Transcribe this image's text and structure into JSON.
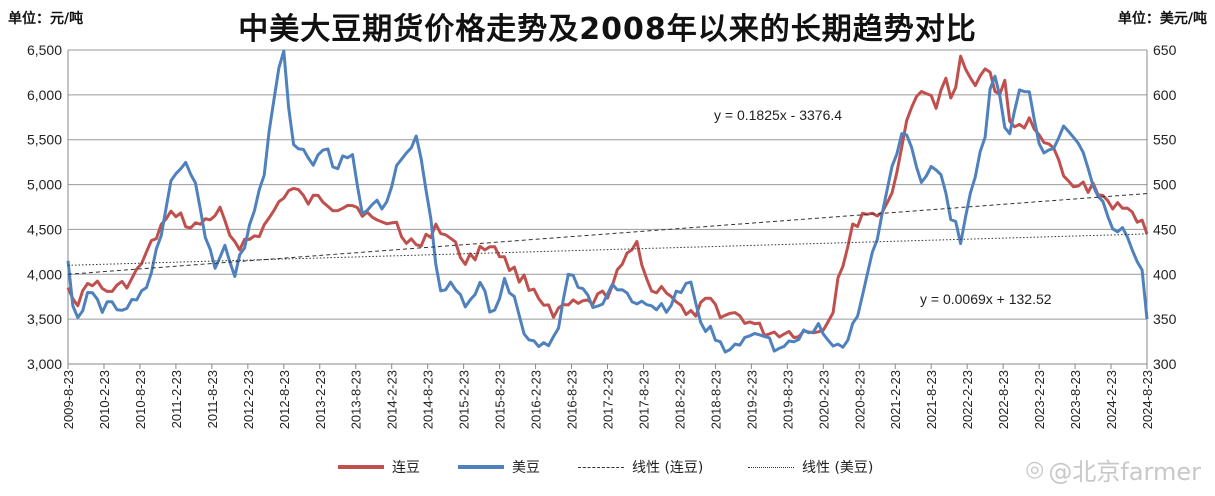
{
  "title": "中美大豆期货价格走势及2008年以来的长期趋势对比",
  "unit_left": "单位：元/吨",
  "unit_right": "单位：美元/吨",
  "watermark": "@北京farmer",
  "colors": {
    "series1": "#c0504d",
    "series2": "#4f81bd",
    "grid": "#9a9a9a",
    "trend": "#333333"
  },
  "chart_data": {
    "type": "line",
    "x_ticks": [
      "2009-8-23",
      "2010-2-23",
      "2010-8-23",
      "2011-2-23",
      "2011-8-23",
      "2012-2-23",
      "2012-8-23",
      "2013-2-23",
      "2013-8-23",
      "2014-2-23",
      "2014-8-23",
      "2015-2-23",
      "2015-8-23",
      "2016-2-23",
      "2016-8-23",
      "2017-2-23",
      "2017-8-23",
      "2018-2-23",
      "2018-8-23",
      "2019-2-23",
      "2019-8-23",
      "2020-2-23",
      "2020-8-23",
      "2021-2-23",
      "2021-8-23",
      "2022-2-23",
      "2022-8-23",
      "2023-2-23",
      "2023-8-23",
      "2024-2-23",
      "2024-8-23"
    ],
    "y_left": {
      "min": 3000,
      "max": 6500,
      "step": 500,
      "ticks": [
        "3,000",
        "3,500",
        "4,000",
        "4,500",
        "5,000",
        "5,500",
        "6,000",
        "6,500"
      ]
    },
    "y_right": {
      "min": 300,
      "max": 650,
      "step": 50,
      "ticks": [
        "300",
        "350",
        "400",
        "450",
        "500",
        "550",
        "600",
        "650"
      ]
    },
    "series": [
      {
        "name": "连豆",
        "axis": "left",
        "x": [
          2009.64,
          2009.8,
          2009.95,
          2010.15,
          2010.35,
          2010.55,
          2010.75,
          2010.95,
          2011.15,
          2011.35,
          2011.55,
          2011.75,
          2011.95,
          2012.15,
          2012.35,
          2012.5,
          2012.65,
          2012.8,
          2012.95,
          2013.15,
          2013.35,
          2013.55,
          2013.75,
          2013.95,
          2014.15,
          2014.35,
          2014.55,
          2014.75,
          2014.95,
          2015.15,
          2015.35,
          2015.55,
          2015.75,
          2015.95,
          2016.1,
          2016.25,
          2016.4,
          2016.55,
          2016.75,
          2016.95,
          2017.15,
          2017.35,
          2017.55,
          2017.75,
          2017.95,
          2018.1,
          2018.25,
          2018.4,
          2018.55,
          2018.75,
          2018.95,
          2019.15,
          2019.35,
          2019.55,
          2019.75,
          2019.95,
          2020.1,
          2020.25,
          2020.35,
          2020.45,
          2020.55,
          2020.7,
          2020.85,
          2021.0,
          2021.1,
          2021.2,
          2021.35,
          2021.5,
          2021.6,
          2021.7,
          2021.85,
          2021.95,
          2022.05,
          2022.2,
          2022.35,
          2022.45,
          2022.55,
          2022.65,
          2022.75,
          2022.9,
          2023.0,
          2023.1,
          2023.25,
          2023.4,
          2023.5,
          2023.6,
          2023.75,
          2023.9,
          2024.05,
          2024.2,
          2024.35,
          2024.5,
          2024.64
        ],
        "values": [
          3850,
          3680,
          3950,
          3800,
          3850,
          3950,
          4250,
          4550,
          4700,
          4500,
          4600,
          4700,
          4300,
          4400,
          4500,
          4700,
          4900,
          4950,
          4800,
          4850,
          4750,
          4800,
          4700,
          4550,
          4600,
          4400,
          4300,
          4550,
          4400,
          4150,
          4250,
          4350,
          4100,
          3950,
          3850,
          3700,
          3500,
          3650,
          3650,
          3700,
          3800,
          4100,
          4350,
          3800,
          3850,
          3700,
          3500,
          3600,
          3700,
          3550,
          3550,
          3450,
          3350,
          3350,
          3350,
          3350,
          3400,
          3500,
          4000,
          4200,
          4500,
          4700,
          4650,
          4750,
          4900,
          5350,
          5800,
          6100,
          6000,
          5850,
          6150,
          5850,
          6500,
          6150,
          6200,
          6300,
          5900,
          6200,
          5650,
          5650,
          5700,
          5550,
          5500,
          5250,
          5050,
          4950,
          5000,
          4950,
          4850,
          4750,
          4700,
          4650,
          4450
        ]
      },
      {
        "name": "美豆",
        "axis": "right",
        "x": [
          2009.64,
          2009.7,
          2009.8,
          2009.95,
          2010.1,
          2010.25,
          2010.4,
          2010.55,
          2010.7,
          2010.85,
          2010.95,
          2011.1,
          2011.25,
          2011.4,
          2011.55,
          2011.7,
          2011.85,
          2011.95,
          2012.1,
          2012.25,
          2012.35,
          2012.45,
          2012.55,
          2012.65,
          2012.75,
          2012.9,
          2013.05,
          2013.2,
          2013.35,
          2013.5,
          2013.6,
          2013.75,
          2013.9,
          2014.05,
          2014.2,
          2014.35,
          2014.5,
          2014.6,
          2014.7,
          2014.8,
          2015.0,
          2015.2,
          2015.4,
          2015.55,
          2015.7,
          2015.85,
          2016.0,
          2016.15,
          2016.3,
          2016.45,
          2016.6,
          2016.75,
          2016.9,
          2017.05,
          2017.2,
          2017.35,
          2017.55,
          2017.7,
          2017.85,
          2018.0,
          2018.15,
          2018.3,
          2018.45,
          2018.6,
          2018.75,
          2018.9,
          2019.05,
          2019.2,
          2019.35,
          2019.5,
          2019.65,
          2019.8,
          2019.95,
          2020.1,
          2020.25,
          2020.4,
          2020.55,
          2020.7,
          2020.85,
          2021.0,
          2021.1,
          2021.25,
          2021.4,
          2021.5,
          2021.6,
          2021.75,
          2021.9,
          2022.05,
          2022.2,
          2022.3,
          2022.4,
          2022.5,
          2022.6,
          2022.7,
          2022.85,
          2023.0,
          2023.15,
          2023.3,
          2023.45,
          2023.6,
          2023.75,
          2023.9,
          2024.05,
          2024.2,
          2024.35,
          2024.5,
          2024.6,
          2024.64
        ],
        "values": [
          415,
          360,
          355,
          380,
          360,
          370,
          355,
          370,
          380,
          420,
          450,
          510,
          520,
          510,
          440,
          410,
          430,
          400,
          430,
          480,
          505,
          570,
          625,
          645,
          540,
          540,
          520,
          545,
          515,
          530,
          530,
          460,
          480,
          475,
          520,
          540,
          550,
          510,
          450,
          380,
          390,
          365,
          390,
          350,
          390,
          370,
          330,
          325,
          320,
          340,
          400,
          390,
          370,
          360,
          390,
          380,
          370,
          360,
          360,
          365,
          380,
          390,
          340,
          335,
          315,
          320,
          330,
          340,
          330,
          315,
          320,
          330,
          335,
          340,
          320,
          320,
          340,
          380,
          430,
          480,
          520,
          560,
          540,
          500,
          520,
          520,
          470,
          440,
          490,
          530,
          560,
          630,
          600,
          540,
          600,
          610,
          540,
          540,
          560,
          560,
          540,
          500,
          480,
          440,
          450,
          410,
          400,
          350
        ]
      }
    ],
    "trendlines": [
      {
        "name": "线性 (连豆)",
        "axis": "left",
        "equation": "y = 0.1825x  - 3376.4",
        "start": 4000,
        "end": 4900
      },
      {
        "name": "线性 (美豆)",
        "axis": "right",
        "equation": "y = 0.0069x  + 132.52",
        "start": 410,
        "end": 445
      }
    ]
  },
  "legend": [
    {
      "label": "连豆",
      "kind": "solid",
      "color": "#c0504d"
    },
    {
      "label": "美豆",
      "kind": "solid",
      "color": "#4f81bd"
    },
    {
      "label": "线性 (连豆)",
      "kind": "dashed",
      "color": "#333333"
    },
    {
      "label": "线性 (美豆)",
      "kind": "dotted",
      "color": "#333333"
    }
  ]
}
